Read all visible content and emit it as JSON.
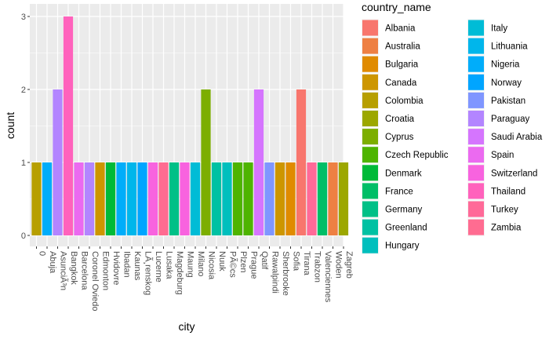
{
  "chart_data": {
    "type": "bar",
    "xlabel": "city",
    "ylabel": "count",
    "ylim": [
      0,
      3
    ],
    "y_ticks": [
      0,
      1,
      2,
      3
    ],
    "grid": true,
    "legend_title": "country_name",
    "legend_position": "right",
    "categories": [
      "0",
      "Abuja",
      "AsunciÃ³n",
      "Bangkok",
      "Barcelona",
      "Coronel Oviedo",
      "Edmonton",
      "Hvidovre",
      "Ibadan",
      "Kaunas",
      "LÃ¸renskog",
      "Lucerne",
      "Lusaka",
      "Magdeburg",
      "Maung",
      "Milano",
      "Nicosia",
      "Nuuk",
      "PÃ©cs",
      "Plzen",
      "Prague",
      "Qatif",
      "Rawalpindi",
      "Sherbrooke",
      "Sofia",
      "Tirana",
      "Trabzon",
      "Valenciennes",
      "Woden",
      "Zagreb"
    ],
    "bars": [
      {
        "city": "0",
        "country": "Colombia",
        "value": 1
      },
      {
        "city": "Abuja",
        "country": "Nigeria",
        "value": 1
      },
      {
        "city": "AsunciÃ³n",
        "country": "Paraguay",
        "value": 2
      },
      {
        "city": "Bangkok",
        "country": "Thailand",
        "value": 3
      },
      {
        "city": "Barcelona",
        "country": "Spain",
        "value": 1
      },
      {
        "city": "Coronel Oviedo",
        "country": "Paraguay",
        "value": 1
      },
      {
        "city": "Edmonton",
        "country": "Canada",
        "value": 1
      },
      {
        "city": "Hvidovre",
        "country": "Denmark",
        "value": 1
      },
      {
        "city": "Ibadan",
        "country": "Nigeria",
        "value": 1
      },
      {
        "city": "Kaunas",
        "country": "Lithuania",
        "value": 1
      },
      {
        "city": "LÃ¸renskog",
        "country": "Norway",
        "value": 1
      },
      {
        "city": "Lucerne",
        "country": "Switzerland",
        "value": 1
      },
      {
        "city": "Lusaka",
        "country": "Zambia",
        "value": 1
      },
      {
        "city": "Magdeburg",
        "country": "Germany",
        "value": 1
      },
      {
        "city": "Maung",
        "country": "Switzerland",
        "value": 1
      },
      {
        "city": "Milano",
        "country": "Italy",
        "value": 1
      },
      {
        "city": "Nicosia",
        "country": "Cyprus",
        "value": 2
      },
      {
        "city": "Nuuk",
        "country": "Greenland",
        "value": 1
      },
      {
        "city": "PÃ©cs",
        "country": "Hungary",
        "value": 1
      },
      {
        "city": "Plzen",
        "country": "Czech Republic",
        "value": 1
      },
      {
        "city": "Prague",
        "country": "Czech Republic",
        "value": 1
      },
      {
        "city": "Qatif",
        "country": "Saudi Arabia",
        "value": 2
      },
      {
        "city": "Rawalpindi",
        "country": "Pakistan",
        "value": 1
      },
      {
        "city": "Sherbrooke",
        "country": "Canada",
        "value": 1
      },
      {
        "city": "Sofia",
        "country": "Bulgaria",
        "value": 1
      },
      {
        "city": "Tirana",
        "country": "Albania",
        "value": 2
      },
      {
        "city": "Trabzon",
        "country": "Turkey",
        "value": 1
      },
      {
        "city": "Valenciennes",
        "country": "France",
        "value": 1
      },
      {
        "city": "Woden",
        "country": "Australia",
        "value": 1
      },
      {
        "city": "Zagreb",
        "country": "Croatia",
        "value": 1
      }
    ],
    "legend": [
      {
        "name": "Albania",
        "color": "#F8766D"
      },
      {
        "name": "Australia",
        "color": "#EE8043"
      },
      {
        "name": "Bulgaria",
        "color": "#E08B00"
      },
      {
        "name": "Canada",
        "color": "#CD9600"
      },
      {
        "name": "Colombia",
        "color": "#B79F00"
      },
      {
        "name": "Croatia",
        "color": "#9CA700"
      },
      {
        "name": "Cyprus",
        "color": "#7CAE00"
      },
      {
        "name": "Czech Republic",
        "color": "#4EB400"
      },
      {
        "name": "Denmark",
        "color": "#00BA38"
      },
      {
        "name": "France",
        "color": "#00BE67"
      },
      {
        "name": "Germany",
        "color": "#00C087"
      },
      {
        "name": "Greenland",
        "color": "#00C1A3"
      },
      {
        "name": "Hungary",
        "color": "#00BFBD"
      },
      {
        "name": "Italy",
        "color": "#00BCD6"
      },
      {
        "name": "Lithuania",
        "color": "#00B6EB"
      },
      {
        "name": "Nigeria",
        "color": "#00ADFA"
      },
      {
        "name": "Norway",
        "color": "#00A5FF"
      },
      {
        "name": "Pakistan",
        "color": "#7F96FF"
      },
      {
        "name": "Paraguay",
        "color": "#B385FF"
      },
      {
        "name": "Saudi Arabia",
        "color": "#D575FE"
      },
      {
        "name": "Spain",
        "color": "#EB6AF0"
      },
      {
        "name": "Switzerland",
        "color": "#F863DF"
      },
      {
        "name": "Thailand",
        "color": "#FF62BC"
      },
      {
        "name": "Turkey",
        "color": "#FF6A98"
      },
      {
        "name": "Zambia",
        "color": "#FF6C91"
      }
    ]
  }
}
